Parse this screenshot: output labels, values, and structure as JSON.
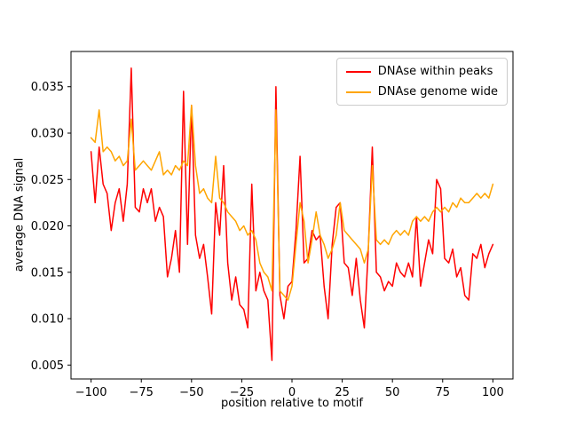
{
  "chart_data": {
    "type": "line",
    "title": "",
    "xlabel": "position relative to motif",
    "ylabel": "average DNA signal",
    "xlim": [
      -110,
      110
    ],
    "ylim": [
      0.0035,
      0.0388
    ],
    "xticks": [
      -100,
      -75,
      -50,
      -25,
      0,
      25,
      50,
      75,
      100
    ],
    "xtick_labels": [
      "−100",
      "−75",
      "−50",
      "−25",
      "0",
      "25",
      "50",
      "75",
      "100"
    ],
    "yticks": [
      0.005,
      0.01,
      0.015,
      0.02,
      0.025,
      0.03,
      0.035
    ],
    "ytick_labels": [
      "0.005",
      "0.010",
      "0.015",
      "0.020",
      "0.025",
      "0.030",
      "0.035"
    ],
    "grid": false,
    "legend_position": "upper right",
    "x": [
      -100,
      -98,
      -96,
      -94,
      -92,
      -90,
      -88,
      -86,
      -84,
      -82,
      -80,
      -78,
      -76,
      -74,
      -72,
      -70,
      -68,
      -66,
      -64,
      -62,
      -60,
      -58,
      -56,
      -54,
      -52,
      -50,
      -48,
      -46,
      -44,
      -42,
      -40,
      -38,
      -36,
      -34,
      -32,
      -30,
      -28,
      -26,
      -24,
      -22,
      -20,
      -18,
      -16,
      -14,
      -12,
      -10,
      -8,
      -6,
      -4,
      -2,
      0,
      2,
      4,
      6,
      8,
      10,
      12,
      14,
      16,
      18,
      20,
      22,
      24,
      26,
      28,
      30,
      32,
      34,
      36,
      38,
      40,
      42,
      44,
      46,
      48,
      50,
      52,
      54,
      56,
      58,
      60,
      62,
      64,
      66,
      68,
      70,
      72,
      74,
      76,
      78,
      80,
      82,
      84,
      86,
      88,
      90,
      92,
      94,
      96,
      98,
      100
    ],
    "series": [
      {
        "name": "DNAse within peaks",
        "color": "#ff0000",
        "values": [
          0.028,
          0.0225,
          0.0285,
          0.0245,
          0.0235,
          0.0195,
          0.0225,
          0.024,
          0.0205,
          0.0245,
          0.037,
          0.022,
          0.0215,
          0.024,
          0.0225,
          0.024,
          0.0205,
          0.022,
          0.021,
          0.0145,
          0.0165,
          0.0195,
          0.015,
          0.0345,
          0.018,
          0.033,
          0.019,
          0.0165,
          0.018,
          0.0145,
          0.0105,
          0.0225,
          0.019,
          0.0265,
          0.016,
          0.012,
          0.0145,
          0.0115,
          0.011,
          0.009,
          0.0245,
          0.013,
          0.015,
          0.013,
          0.012,
          0.0055,
          0.035,
          0.0125,
          0.01,
          0.0135,
          0.014,
          0.0195,
          0.0275,
          0.016,
          0.0165,
          0.0195,
          0.0185,
          0.019,
          0.0135,
          0.01,
          0.018,
          0.022,
          0.0225,
          0.016,
          0.0155,
          0.0125,
          0.0165,
          0.012,
          0.009,
          0.0175,
          0.0285,
          0.015,
          0.0145,
          0.013,
          0.014,
          0.0135,
          0.016,
          0.015,
          0.0145,
          0.016,
          0.0145,
          0.021,
          0.0135,
          0.016,
          0.0185,
          0.017,
          0.025,
          0.024,
          0.0165,
          0.016,
          0.0175,
          0.0145,
          0.0155,
          0.0125,
          0.012,
          0.017,
          0.0165,
          0.018,
          0.0155,
          0.017,
          0.018
        ]
      },
      {
        "name": "DNAse genome wide",
        "color": "#ffa500",
        "values": [
          0.0295,
          0.029,
          0.0325,
          0.028,
          0.0285,
          0.028,
          0.027,
          0.0275,
          0.0265,
          0.027,
          0.0315,
          0.026,
          0.0265,
          0.027,
          0.0265,
          0.026,
          0.027,
          0.028,
          0.0255,
          0.026,
          0.0255,
          0.0265,
          0.026,
          0.027,
          0.0265,
          0.033,
          0.0265,
          0.0235,
          0.024,
          0.023,
          0.0225,
          0.0275,
          0.023,
          0.0225,
          0.0215,
          0.021,
          0.0205,
          0.0195,
          0.02,
          0.019,
          0.0195,
          0.0185,
          0.016,
          0.015,
          0.0145,
          0.013,
          0.0325,
          0.013,
          0.0125,
          0.012,
          0.0135,
          0.018,
          0.0225,
          0.0205,
          0.016,
          0.0185,
          0.0215,
          0.019,
          0.018,
          0.0165,
          0.0175,
          0.019,
          0.0225,
          0.0195,
          0.019,
          0.0185,
          0.018,
          0.0175,
          0.016,
          0.0175,
          0.0265,
          0.0185,
          0.018,
          0.0185,
          0.018,
          0.019,
          0.0195,
          0.019,
          0.0195,
          0.019,
          0.0205,
          0.021,
          0.0205,
          0.021,
          0.0205,
          0.0215,
          0.022,
          0.0215,
          0.022,
          0.0215,
          0.0225,
          0.022,
          0.023,
          0.0225,
          0.0225,
          0.023,
          0.0235,
          0.023,
          0.0235,
          0.023,
          0.0245
        ]
      }
    ]
  }
}
